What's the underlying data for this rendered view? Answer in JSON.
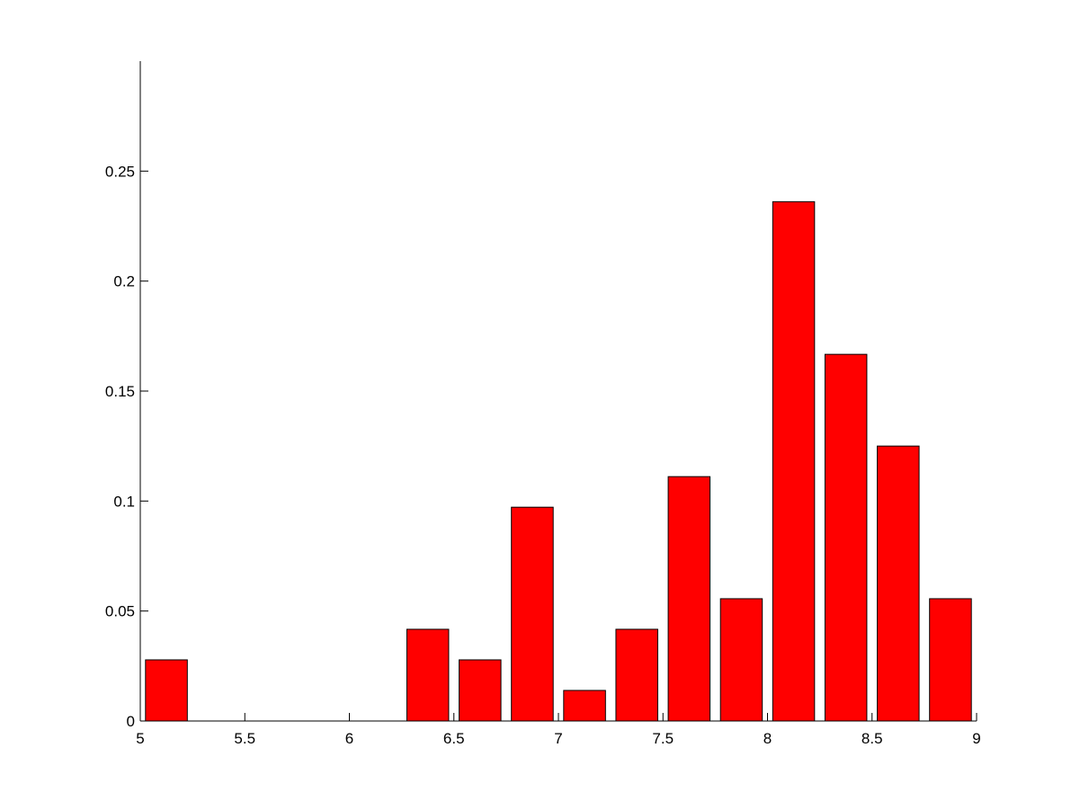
{
  "chart_data": {
    "type": "histogram",
    "bins": [
      5,
      5.25,
      5.5,
      5.75,
      6,
      6.25,
      6.5,
      6.75,
      7,
      7.25,
      7.5,
      7.75,
      8,
      8.25,
      8.5,
      8.75,
      9
    ],
    "values": [
      0.0278,
      0,
      0,
      0,
      0,
      0.0417,
      0.0278,
      0.0972,
      0.0139,
      0.0417,
      0.1111,
      0.0556,
      0.2361,
      0.1667,
      0.125,
      0.0556
    ],
    "color": "#ff0000",
    "xlim": [
      5,
      9
    ],
    "xticks": [
      5,
      5.5,
      6,
      6.5,
      7,
      7.5,
      8,
      8.5,
      9
    ],
    "ylim": [
      0,
      0.3
    ],
    "yticks": [
      0,
      0.05,
      0.1,
      0.15,
      0.2,
      0.25
    ],
    "grid": false
  }
}
